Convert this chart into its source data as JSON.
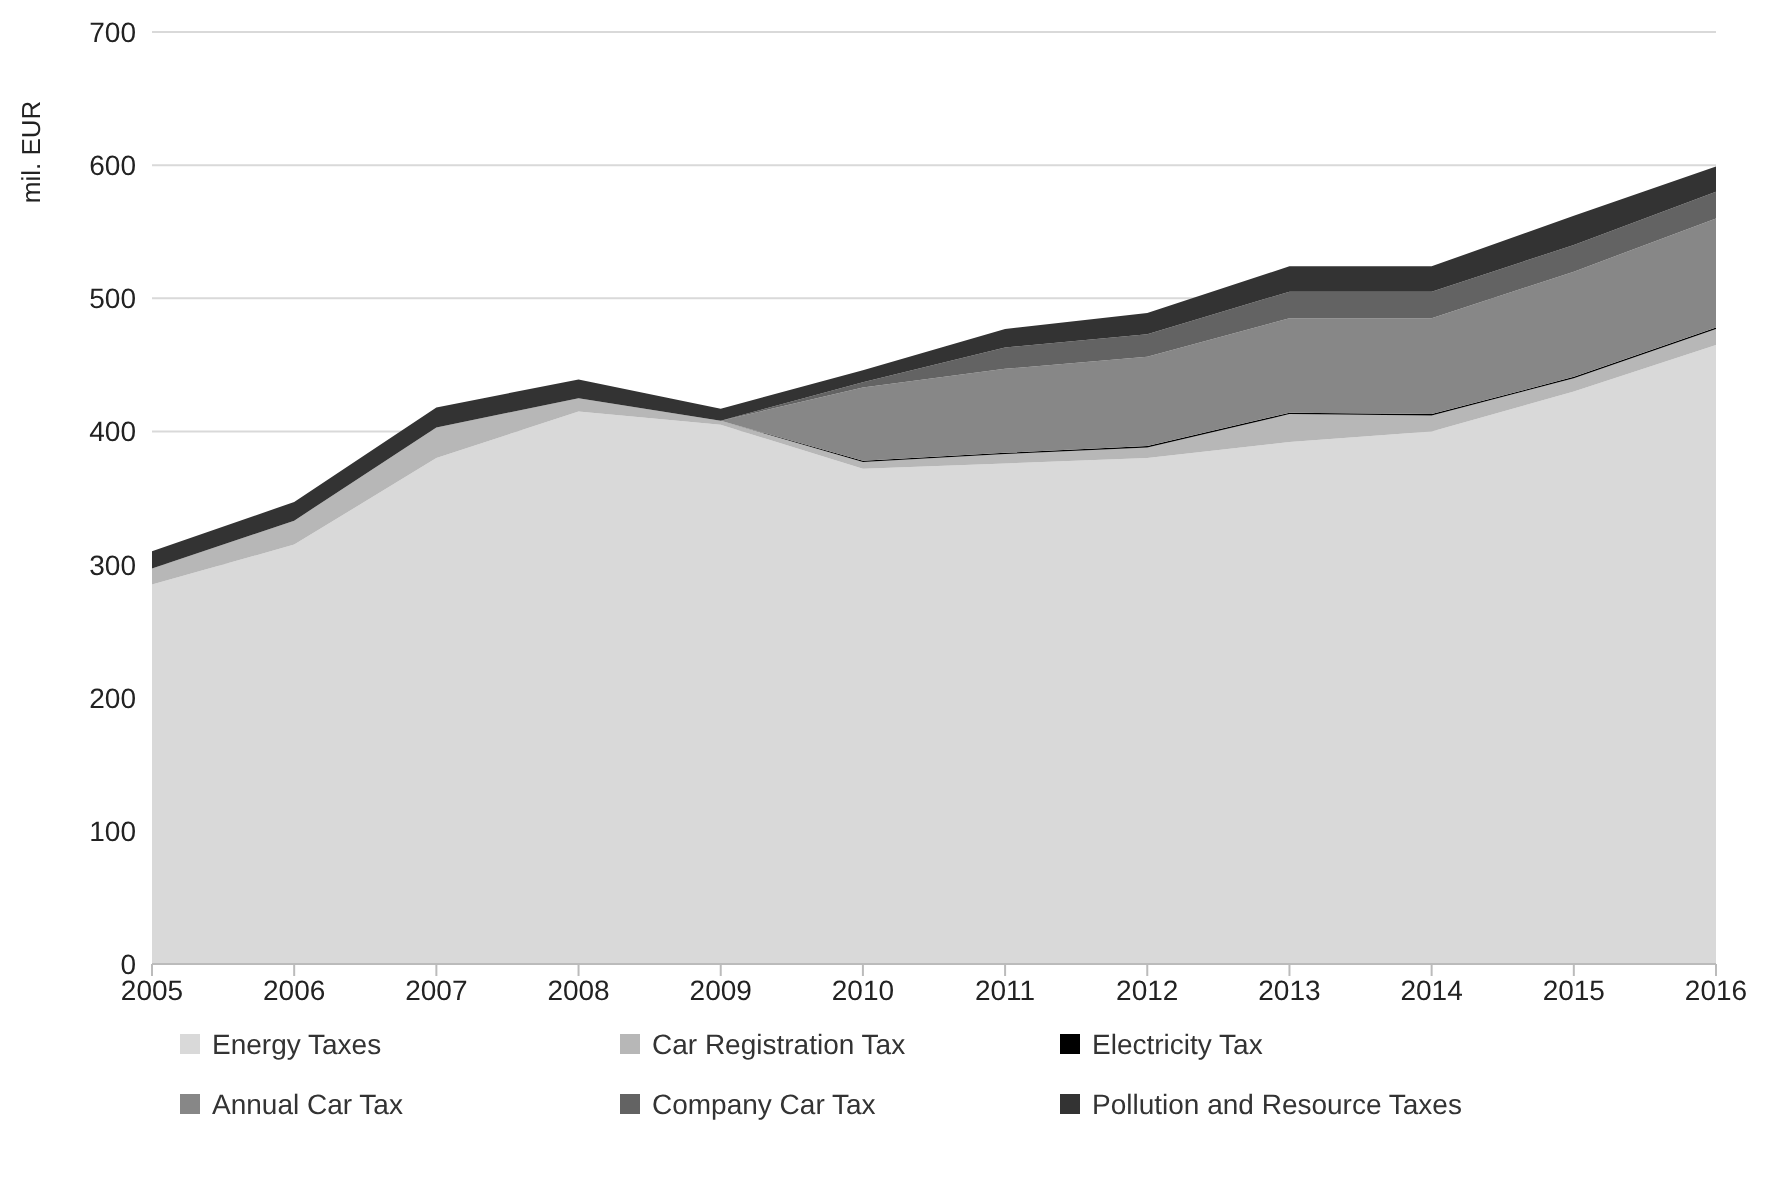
{
  "chart_data": {
    "type": "area",
    "stacked": true,
    "ylabel": "mil. EUR",
    "x": [
      2005,
      2006,
      2007,
      2008,
      2009,
      2010,
      2011,
      2012,
      2013,
      2014,
      2015,
      2016
    ],
    "xlim": [
      2005,
      2016
    ],
    "xticks": [
      2005,
      2006,
      2007,
      2008,
      2009,
      2010,
      2011,
      2012,
      2013,
      2014,
      2015,
      2016
    ],
    "ylim": [
      0,
      700
    ],
    "yticks": [
      0,
      100,
      200,
      300,
      400,
      500,
      600,
      700
    ],
    "grid": "y",
    "legend": "bottom",
    "series": [
      {
        "name": "Energy Taxes",
        "color": "#d9d9d9",
        "values": [
          285,
          315,
          380,
          415,
          405,
          372,
          376,
          380,
          392,
          400,
          430,
          465
        ]
      },
      {
        "name": "Car Registration Tax",
        "color": "#b7b7b7",
        "values": [
          12,
          18,
          23,
          10,
          3,
          5,
          7,
          8,
          21,
          12,
          10,
          12
        ]
      },
      {
        "name": "Electricity Tax",
        "color": "#000000",
        "values": [
          0,
          0,
          0,
          0,
          0,
          1,
          1,
          1,
          1,
          1,
          1,
          1
        ]
      },
      {
        "name": "Annual Car Tax",
        "color": "#878787",
        "values": [
          0,
          0,
          0,
          0,
          0,
          55,
          63,
          67,
          71,
          72,
          79,
          82
        ]
      },
      {
        "name": "Company Car Tax",
        "color": "#636363",
        "values": [
          0,
          0,
          0,
          0,
          0,
          4,
          16,
          17,
          20,
          20,
          20,
          20
        ]
      },
      {
        "name": "Pollution and Resource Taxes",
        "color": "#333333",
        "values": [
          13,
          14,
          15,
          14,
          9,
          9,
          14,
          16,
          19,
          19,
          22,
          19
        ]
      }
    ]
  }
}
